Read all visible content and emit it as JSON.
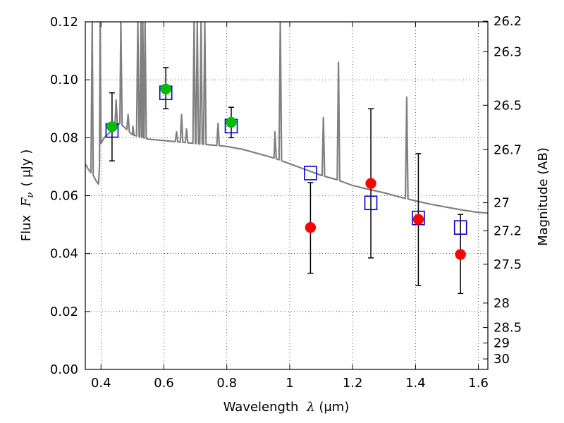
{
  "chart_data": {
    "type": "scatter",
    "title": "",
    "xlabel": "Wavelength",
    "xlabel_symbol": "λ",
    "xlabel_unit": "(μm)",
    "ylabel": "Flux",
    "ylabel_symbol": "F",
    "ylabel_subscript": "ν",
    "ylabel_unit": "( μJy )",
    "ylabel_right": "Magnitude (AB)",
    "xlim": [
      0.35,
      1.63
    ],
    "ylim": [
      0.0,
      0.12
    ],
    "grid": true,
    "x_ticks": [
      0.4,
      0.6,
      0.8,
      1.0,
      1.2,
      1.4,
      1.6
    ],
    "x_tick_labels": [
      "0.4",
      "0.6",
      "0.8",
      "1",
      "1.2",
      "1.4",
      "1.6"
    ],
    "y_ticks": [
      0.0,
      0.02,
      0.04,
      0.06,
      0.08,
      0.1,
      0.12
    ],
    "y_tick_labels": [
      "0.00",
      "0.02",
      "0.04",
      "0.06",
      "0.08",
      "0.10",
      "0.12"
    ],
    "mag_ticks": [
      26.2,
      26.3,
      26.5,
      26.7,
      27,
      27.2,
      27.5,
      28,
      28.5,
      29,
      30
    ],
    "mag_tick_labels": [
      "26.2",
      "26.3",
      "26.5",
      "26.7",
      "27",
      "27.2",
      "27.5",
      "28",
      "28.5",
      "29",
      "30"
    ],
    "colors": {
      "optical": "#00bb00",
      "nir": "#ff0000",
      "model_box": "#0000cc",
      "sed_line": "#808080",
      "errorbar": "#000000"
    },
    "series": [
      {
        "points": [
          {
            "x": 0.435,
            "y": 0.0838,
            "yerr": [
              0.072,
              0.0955
            ]
          },
          {
            "x": 0.606,
            "y": 0.0968,
            "yerr": [
              0.09,
              0.1042
            ]
          },
          {
            "x": 0.814,
            "y": 0.0853,
            "yerr": [
              0.08,
              0.0905
            ]
          }
        ]
      },
      {
        "points": [
          {
            "x": 1.066,
            "y": 0.049,
            "yerr": [
              0.0332,
              0.0645
            ]
          },
          {
            "x": 1.258,
            "y": 0.0642,
            "yerr": [
              0.0385,
              0.09
            ]
          },
          {
            "x": 1.409,
            "y": 0.0518,
            "yerr": [
              0.029,
              0.0745
            ]
          },
          {
            "x": 1.543,
            "y": 0.0397,
            "yerr": [
              0.0262,
              0.0535
            ]
          }
        ]
      },
      {
        "points": [
          {
            "x": 0.435,
            "y": 0.0825
          },
          {
            "x": 0.606,
            "y": 0.0955
          },
          {
            "x": 0.814,
            "y": 0.084
          },
          {
            "x": 1.066,
            "y": 0.0678
          },
          {
            "x": 1.258,
            "y": 0.0575
          },
          {
            "x": 1.409,
            "y": 0.0523
          },
          {
            "x": 1.543,
            "y": 0.049
          }
        ]
      }
    ],
    "sed_continuum": [
      [
        0.35,
        0.071
      ],
      [
        0.36,
        0.069
      ],
      [
        0.375,
        0.067
      ],
      [
        0.385,
        0.065
      ],
      [
        0.392,
        0.064
      ],
      [
        0.395,
        0.07
      ],
      [
        0.4,
        0.078
      ],
      [
        0.41,
        0.08
      ],
      [
        0.42,
        0.081
      ],
      [
        0.44,
        0.083
      ],
      [
        0.46,
        0.085
      ],
      [
        0.48,
        0.083
      ],
      [
        0.5,
        0.081
      ],
      [
        0.55,
        0.0795
      ],
      [
        0.6,
        0.079
      ],
      [
        0.65,
        0.0785
      ],
      [
        0.7,
        0.078
      ],
      [
        0.75,
        0.0775
      ],
      [
        0.8,
        0.077
      ],
      [
        0.85,
        0.076
      ],
      [
        0.9,
        0.0745
      ],
      [
        0.95,
        0.073
      ],
      [
        1.0,
        0.071
      ],
      [
        1.05,
        0.069
      ],
      [
        1.1,
        0.067
      ],
      [
        1.15,
        0.0655
      ],
      [
        1.2,
        0.0635
      ],
      [
        1.25,
        0.0622
      ],
      [
        1.3,
        0.061
      ],
      [
        1.35,
        0.0595
      ],
      [
        1.4,
        0.0582
      ],
      [
        1.45,
        0.057
      ],
      [
        1.5,
        0.056
      ],
      [
        1.55,
        0.055
      ],
      [
        1.6,
        0.0542
      ],
      [
        1.63,
        0.054
      ]
    ],
    "sed_lines": [
      {
        "x": 0.372,
        "peak": 0.12
      },
      {
        "x": 0.397,
        "peak": 0.12
      },
      {
        "x": 0.448,
        "peak": 0.093
      },
      {
        "x": 0.463,
        "peak": 0.12
      },
      {
        "x": 0.486,
        "peak": 0.088
      },
      {
        "x": 0.501,
        "peak": 0.084
      },
      {
        "x": 0.517,
        "peak": 0.12
      },
      {
        "x": 0.527,
        "peak": 0.12
      },
      {
        "x": 0.533,
        "peak": 0.12
      },
      {
        "x": 0.54,
        "peak": 0.12
      },
      {
        "x": 0.64,
        "peak": 0.082
      },
      {
        "x": 0.656,
        "peak": 0.088
      },
      {
        "x": 0.672,
        "peak": 0.083
      },
      {
        "x": 0.696,
        "peak": 0.12
      },
      {
        "x": 0.706,
        "peak": 0.12
      },
      {
        "x": 0.718,
        "peak": 0.12
      },
      {
        "x": 0.73,
        "peak": 0.12
      },
      {
        "x": 0.772,
        "peak": 0.085
      },
      {
        "x": 0.953,
        "peak": 0.082
      },
      {
        "x": 0.97,
        "peak": 0.12
      },
      {
        "x": 1.107,
        "peak": 0.087
      },
      {
        "x": 1.155,
        "peak": 0.106
      },
      {
        "x": 1.372,
        "peak": 0.094
      }
    ]
  }
}
